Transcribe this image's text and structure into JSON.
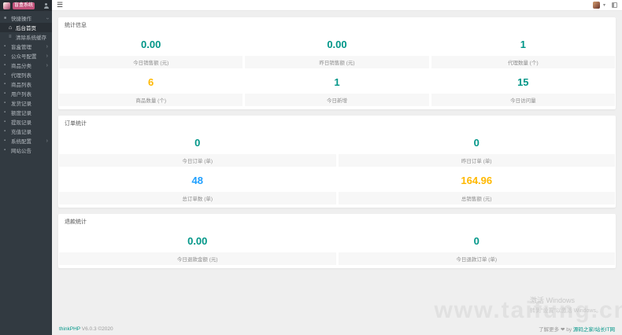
{
  "colors": {
    "teal": "#009688",
    "orange": "#FFB800",
    "blue": "#1E9FFF",
    "sidebar_bg": "#323a41",
    "badge_bg": "#c2527b"
  },
  "sidebar": {
    "logo_text": "盲盒系统",
    "items": [
      {
        "label": "快捷操作",
        "icon": "folder-icon",
        "expanded": true
      },
      {
        "label": "后台首页",
        "icon": "home-icon",
        "active": true
      },
      {
        "label": "清除系统缓存",
        "icon": "cache-icon"
      },
      {
        "label": "盲盒管理",
        "icon": "box-icon",
        "arrow": true
      },
      {
        "label": "公众号配置",
        "icon": "chat-icon",
        "arrow": true
      },
      {
        "label": "商品分类",
        "icon": "tag-icon",
        "arrow": true
      },
      {
        "label": "代理列表",
        "icon": "agent-icon"
      },
      {
        "label": "商品列表",
        "icon": "goods-icon"
      },
      {
        "label": "用户列表",
        "icon": "users-icon"
      },
      {
        "label": "发货记录",
        "icon": "delivery-icon"
      },
      {
        "label": "额度记录",
        "icon": "quota-icon"
      },
      {
        "label": "提现记录",
        "icon": "withdraw-icon"
      },
      {
        "label": "充值记录",
        "icon": "recharge-icon"
      },
      {
        "label": "系统配置",
        "icon": "settings-icon",
        "arrow": true
      },
      {
        "label": "网站公告",
        "icon": "notice-icon"
      }
    ]
  },
  "panels": [
    {
      "title": "统计信息",
      "cells": [
        {
          "value": "0.00",
          "label": "今日销售额 (元)",
          "color": "#009688"
        },
        {
          "value": "0.00",
          "label": "昨日销售额 (元)",
          "color": "#009688"
        },
        {
          "value": "1",
          "label": "代理数量 (个)",
          "color": "#009688"
        },
        {
          "value": "6",
          "label": "商品数量 (个)",
          "color": "#FFB800"
        },
        {
          "value": "1",
          "label": "今日新增",
          "color": "#009688"
        },
        {
          "value": "15",
          "label": "今日访问量",
          "color": "#009688"
        }
      ]
    },
    {
      "title": "订单统计",
      "cells": [
        {
          "value": "0",
          "label": "今日订单 (单)",
          "color": "#009688"
        },
        {
          "value": "0",
          "label": "昨日订单 (单)",
          "color": "#009688"
        },
        {
          "value": "48",
          "label": "总订单数 (单)",
          "color": "#1E9FFF"
        },
        {
          "value": "164.96",
          "label": "总销售额 (元)",
          "color": "#FFB800"
        }
      ]
    },
    {
      "title": "退款统计",
      "cells": [
        {
          "value": "0.00",
          "label": "今日退款金额 (元)",
          "color": "#009688"
        },
        {
          "value": "0",
          "label": "今日退款订单 (单)",
          "color": "#009688"
        }
      ]
    }
  ],
  "watermark": {
    "domain": "www.taifung.cn",
    "win_line1": "激活 Windows",
    "win_line2": "转到“设置”以激活 Windows。"
  },
  "footer": {
    "left_brand": "thinkPHP",
    "left_rest": " V6.0.3 ©2020",
    "right_prefix": "了解更多 ❤ by ",
    "right_link": "源码之家/站长IT网"
  }
}
